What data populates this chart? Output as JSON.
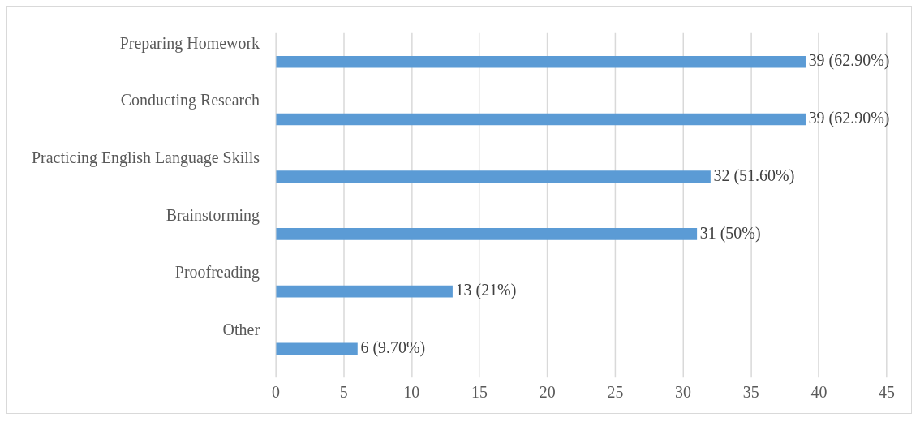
{
  "chart_data": {
    "type": "bar",
    "orientation": "horizontal",
    "categories": [
      "Preparing Homework",
      "Conducting Research",
      "Practicing English Language Skills",
      "Brainstorming",
      "Proofreading",
      "Other"
    ],
    "values": [
      39,
      39,
      32,
      31,
      13,
      6
    ],
    "value_labels": [
      "39 (62.90%)",
      "39 (62.90%)",
      "32 (51.60%)",
      "31 (50%)",
      "13 (21%)",
      "6 (9.70%)"
    ],
    "color": "#5b9bd5",
    "xlim": [
      0,
      45
    ],
    "xticks": [
      0,
      5,
      10,
      15,
      20,
      25,
      30,
      35,
      40,
      45
    ],
    "grid": "x",
    "legend": false
  }
}
